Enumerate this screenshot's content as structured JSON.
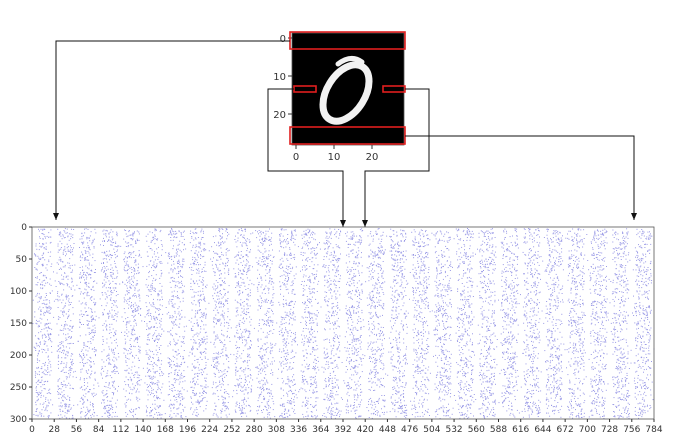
{
  "colors": {
    "scatter": "#9a9ae6",
    "highlight": "#e01f1f",
    "arrow": "#111111",
    "image_background": "#000000",
    "digit_stroke": "#f2f2f2"
  },
  "digit_image": {
    "x_ticks": [
      "0",
      "10",
      "20"
    ],
    "y_ticks": [
      "0",
      "10",
      "20"
    ]
  },
  "chart_data": {
    "type": "scatter",
    "xlim": [
      0,
      784
    ],
    "ylim": [
      300,
      0
    ],
    "x_ticks": [
      "0",
      "28",
      "56",
      "84",
      "112",
      "140",
      "168",
      "196",
      "224",
      "252",
      "280",
      "308",
      "336",
      "364",
      "392",
      "420",
      "448",
      "476",
      "504",
      "532",
      "560",
      "588",
      "616",
      "644",
      "672",
      "700",
      "728",
      "756",
      "784"
    ],
    "y_ticks": [
      "0",
      "50",
      "100",
      "150",
      "200",
      "250",
      "300"
    ],
    "grid": false,
    "legend": "none"
  }
}
